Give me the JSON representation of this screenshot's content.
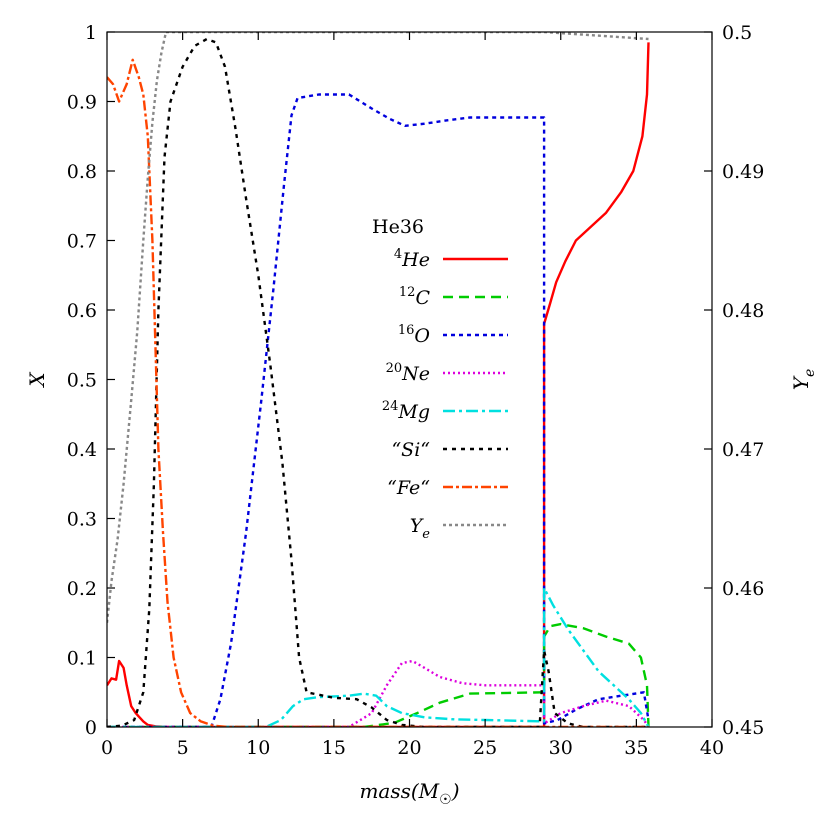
{
  "chart_data": {
    "type": "line",
    "xlabel": "mass(M☉)",
    "ylabel_left": "X",
    "ylabel_right": "Ye",
    "xlim": [
      0,
      40
    ],
    "ylim_left": [
      0,
      1
    ],
    "ylim_right": [
      0.45,
      0.5
    ],
    "x_ticks": [
      "0",
      "5",
      "10",
      "15",
      "20",
      "25",
      "30",
      "35",
      "40"
    ],
    "y_left_ticks": [
      "0",
      "0.1",
      "0.2",
      "0.3",
      "0.4",
      "0.5",
      "0.6",
      "0.7",
      "0.8",
      "0.9",
      "1"
    ],
    "y_right_ticks": [
      "0.45",
      "0.46",
      "0.47",
      "0.48",
      "0.49",
      "0.5"
    ],
    "grid": false,
    "legend_title": "He36",
    "legend_position": "center",
    "series": [
      {
        "name": "4He",
        "sup": "4",
        "base": "He",
        "color": "#ff0000",
        "dash": "",
        "axis": "left",
        "points": [
          [
            0,
            0.06
          ],
          [
            0.3,
            0.07
          ],
          [
            0.6,
            0.068
          ],
          [
            0.8,
            0.095
          ],
          [
            1.1,
            0.085
          ],
          [
            1.3,
            0.06
          ],
          [
            1.6,
            0.03
          ],
          [
            1.9,
            0.02
          ],
          [
            2.1,
            0.015
          ],
          [
            2.4,
            0.008
          ],
          [
            2.7,
            0.003
          ],
          [
            3.2,
            0.001
          ],
          [
            4,
            0
          ],
          [
            28.9,
            0
          ],
          [
            28.9,
            0.58
          ],
          [
            29.3,
            0.61
          ],
          [
            29.7,
            0.64
          ],
          [
            30.3,
            0.67
          ],
          [
            31,
            0.7
          ],
          [
            32,
            0.72
          ],
          [
            33,
            0.74
          ],
          [
            34,
            0.77
          ],
          [
            34.8,
            0.8
          ],
          [
            35.4,
            0.85
          ],
          [
            35.7,
            0.91
          ],
          [
            35.8,
            0.985
          ]
        ]
      },
      {
        "name": "12C",
        "sup": "12",
        "base": "C",
        "color": "#00cc00",
        "dash": "10,6",
        "axis": "left",
        "points": [
          [
            0,
            0
          ],
          [
            17,
            0
          ],
          [
            19,
            0.006
          ],
          [
            20.5,
            0.02
          ],
          [
            22,
            0.035
          ],
          [
            24,
            0.048
          ],
          [
            28.9,
            0.05
          ],
          [
            28.9,
            0.13
          ],
          [
            29.3,
            0.145
          ],
          [
            30,
            0.148
          ],
          [
            31.5,
            0.142
          ],
          [
            33,
            0.13
          ],
          [
            34.5,
            0.12
          ],
          [
            35.3,
            0.1
          ],
          [
            35.7,
            0.06
          ],
          [
            35.8,
            0
          ]
        ]
      },
      {
        "name": "16O",
        "sup": "16",
        "base": "O",
        "color": "#0000dd",
        "dash": "4,4",
        "axis": "left",
        "points": [
          [
            0,
            0
          ],
          [
            6.9,
            0
          ],
          [
            7.5,
            0.04
          ],
          [
            8.2,
            0.12
          ],
          [
            9.2,
            0.28
          ],
          [
            10.2,
            0.47
          ],
          [
            11,
            0.63
          ],
          [
            11.7,
            0.78
          ],
          [
            12.2,
            0.88
          ],
          [
            12.6,
            0.905
          ],
          [
            14,
            0.91
          ],
          [
            16,
            0.91
          ],
          [
            17.5,
            0.89
          ],
          [
            18.7,
            0.875
          ],
          [
            19.7,
            0.865
          ],
          [
            21,
            0.868
          ],
          [
            22.5,
            0.873
          ],
          [
            24,
            0.877
          ],
          [
            28.9,
            0.877
          ],
          [
            28.9,
            0.005
          ],
          [
            29.8,
            0.01
          ],
          [
            31,
            0.025
          ],
          [
            32.5,
            0.04
          ],
          [
            34,
            0.045
          ],
          [
            35.5,
            0.05
          ],
          [
            35.8,
            0.01
          ]
        ]
      },
      {
        "name": "20Ne",
        "sup": "20",
        "base": "Ne",
        "color": "#dd00dd",
        "dash": "2,3",
        "axis": "left",
        "points": [
          [
            0,
            0
          ],
          [
            16,
            0
          ],
          [
            17.5,
            0.02
          ],
          [
            18.5,
            0.06
          ],
          [
            19.5,
            0.092
          ],
          [
            20.2,
            0.095
          ],
          [
            21,
            0.085
          ],
          [
            22,
            0.072
          ],
          [
            23.5,
            0.063
          ],
          [
            25,
            0.06
          ],
          [
            28.9,
            0.06
          ],
          [
            28.9,
            0.005
          ],
          [
            30,
            0.02
          ],
          [
            31.5,
            0.03
          ],
          [
            33,
            0.038
          ],
          [
            34.5,
            0.03
          ],
          [
            35.5,
            0.01
          ],
          [
            35.8,
            0
          ]
        ]
      },
      {
        "name": "24Mg",
        "sup": "24",
        "base": "Mg",
        "color": "#00e0e0",
        "dash": "12,4,3,4",
        "axis": "left",
        "points": [
          [
            0,
            0
          ],
          [
            10.5,
            0
          ],
          [
            11.5,
            0.01
          ],
          [
            12.3,
            0.03
          ],
          [
            13,
            0.04
          ],
          [
            14,
            0.043
          ],
          [
            15,
            0.044
          ],
          [
            16,
            0.045
          ],
          [
            17,
            0.048
          ],
          [
            17.8,
            0.045
          ],
          [
            18.5,
            0.03
          ],
          [
            19.5,
            0.02
          ],
          [
            21,
            0.014
          ],
          [
            23,
            0.011
          ],
          [
            25,
            0.01
          ],
          [
            28.9,
            0.008
          ],
          [
            28.9,
            0.2
          ],
          [
            29.5,
            0.175
          ],
          [
            30.5,
            0.14
          ],
          [
            31.5,
            0.11
          ],
          [
            32.5,
            0.08
          ],
          [
            33.5,
            0.06
          ],
          [
            34.5,
            0.04
          ],
          [
            35.3,
            0.02
          ],
          [
            35.8,
            0
          ]
        ]
      },
      {
        "name": "“Si“",
        "sup": "",
        "base": "“Si“",
        "color": "#000000",
        "dash": "4,5",
        "axis": "left",
        "points": [
          [
            0,
            0
          ],
          [
            1,
            0.002
          ],
          [
            1.8,
            0.01
          ],
          [
            2.4,
            0.05
          ],
          [
            2.8,
            0.17
          ],
          [
            3.1,
            0.35
          ],
          [
            3.4,
            0.6
          ],
          [
            3.8,
            0.82
          ],
          [
            4.2,
            0.9
          ],
          [
            5,
            0.95
          ],
          [
            5.8,
            0.98
          ],
          [
            6.6,
            0.99
          ],
          [
            7.2,
            0.985
          ],
          [
            7.8,
            0.95
          ],
          [
            8.5,
            0.86
          ],
          [
            9.2,
            0.76
          ],
          [
            10,
            0.65
          ],
          [
            10.8,
            0.52
          ],
          [
            11.6,
            0.38
          ],
          [
            12.2,
            0.24
          ],
          [
            12.7,
            0.1
          ],
          [
            13.2,
            0.05
          ],
          [
            15,
            0.042
          ],
          [
            16.5,
            0.04
          ],
          [
            17.5,
            0.028
          ],
          [
            18.5,
            0.01
          ],
          [
            19.5,
            0.003
          ],
          [
            21,
            0
          ],
          [
            28.6,
            0
          ],
          [
            28.9,
            0.11
          ],
          [
            29.2,
            0.08
          ],
          [
            29.6,
            0.02
          ],
          [
            30.5,
            0.005
          ],
          [
            31.5,
            0
          ],
          [
            35.8,
            0
          ]
        ]
      },
      {
        "name": "“Fe“",
        "sup": "",
        "base": "“Fe“",
        "color": "#ff4400",
        "dash": "10,3,3,3",
        "axis": "left",
        "points": [
          [
            0,
            0.935
          ],
          [
            0.4,
            0.925
          ],
          [
            0.8,
            0.9
          ],
          [
            1.3,
            0.925
          ],
          [
            1.7,
            0.96
          ],
          [
            2.1,
            0.935
          ],
          [
            2.4,
            0.91
          ],
          [
            2.7,
            0.85
          ],
          [
            3,
            0.7
          ],
          [
            3.2,
            0.55
          ],
          [
            3.4,
            0.4
          ],
          [
            3.7,
            0.28
          ],
          [
            4,
            0.18
          ],
          [
            4.4,
            0.1
          ],
          [
            4.9,
            0.05
          ],
          [
            5.5,
            0.02
          ],
          [
            6.2,
            0.008
          ],
          [
            7,
            0.002
          ],
          [
            8,
            0
          ],
          [
            35.8,
            0
          ]
        ]
      },
      {
        "name": "Ye",
        "sup": "",
        "base": "Y",
        "sub": "e",
        "color": "#888888",
        "dash": "3,3",
        "axis": "right",
        "points": [
          [
            0,
            0.4575
          ],
          [
            0.3,
            0.4605
          ],
          [
            0.7,
            0.4635
          ],
          [
            1.1,
            0.4675
          ],
          [
            1.6,
            0.4735
          ],
          [
            2,
            0.4785
          ],
          [
            2.4,
            0.485
          ],
          [
            2.7,
            0.4895
          ],
          [
            3,
            0.4935
          ],
          [
            3.3,
            0.4965
          ],
          [
            3.6,
            0.4985
          ],
          [
            3.9,
            0.5
          ],
          [
            28.9,
            0.5
          ],
          [
            35.8,
            0.4995
          ]
        ]
      }
    ]
  }
}
